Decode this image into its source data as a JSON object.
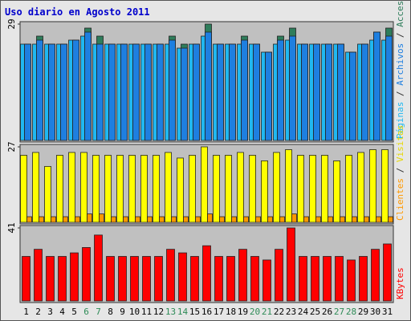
{
  "chart_data": [
    {
      "type": "bar",
      "title": "Uso diario en Agosto 2011",
      "ylim": [
        0,
        29
      ],
      "yticks": [
        29
      ],
      "legend_separator": " / ",
      "series": [
        {
          "name": "Páginas",
          "color": "#20b8f0",
          "values": [
            24,
            24,
            24,
            24,
            25,
            26,
            24,
            24,
            24,
            24,
            24,
            24,
            24,
            23,
            24,
            26,
            24,
            24,
            24,
            24,
            22,
            24,
            25,
            24,
            24,
            24,
            24,
            22,
            24,
            25,
            25
          ]
        },
        {
          "name": "Archivos",
          "color": "#1e7fe0",
          "values": [
            24,
            25,
            24,
            24,
            25,
            27,
            24,
            24,
            24,
            24,
            24,
            24,
            25,
            23,
            24,
            27,
            24,
            24,
            25,
            24,
            22,
            25,
            26,
            24,
            24,
            24,
            24,
            22,
            24,
            27,
            26
          ]
        },
        {
          "name": "Accesos",
          "color": "#2e7d5b",
          "values": [
            24,
            26,
            24,
            24,
            25,
            28,
            26,
            24,
            24,
            24,
            24,
            24,
            26,
            24,
            24,
            29,
            24,
            24,
            26,
            24,
            22,
            26,
            28,
            24,
            24,
            24,
            24,
            22,
            24,
            27,
            28
          ]
        }
      ]
    },
    {
      "type": "bar",
      "ylim": [
        0,
        27
      ],
      "yticks": [
        27
      ],
      "legend_separator": " / ",
      "series": [
        {
          "name": "Clientes",
          "color": "#ff9900",
          "values": [
            2,
            2,
            2,
            2,
            2,
            3,
            3,
            2,
            2,
            2,
            2,
            2,
            2,
            2,
            2,
            3,
            2,
            2,
            2,
            2,
            2,
            2,
            3,
            2,
            2,
            2,
            2,
            2,
            2,
            2,
            2
          ]
        },
        {
          "name": "Visitas",
          "color": "#ffff00",
          "values": [
            24,
            25,
            20,
            24,
            25,
            25,
            24,
            24,
            24,
            24,
            24,
            24,
            25,
            23,
            24,
            27,
            24,
            24,
            25,
            24,
            22,
            25,
            26,
            24,
            24,
            24,
            22,
            24,
            25,
            26,
            26
          ]
        }
      ]
    },
    {
      "type": "bar",
      "ylim": [
        0,
        41
      ],
      "yticks": [
        41
      ],
      "categories": [
        "1",
        "2",
        "3",
        "4",
        "5",
        "6",
        "7",
        "8",
        "9",
        "10",
        "11",
        "12",
        "13",
        "14",
        "15",
        "16",
        "17",
        "18",
        "19",
        "20",
        "21",
        "22",
        "23",
        "24",
        "25",
        "26",
        "27",
        "28",
        "29",
        "30",
        "31"
      ],
      "category_colors": [
        "#000",
        "#000",
        "#000",
        "#000",
        "#000",
        "#2e8b57",
        "#2e8b57",
        "#000",
        "#000",
        "#000",
        "#000",
        "#000",
        "#2e8b57",
        "#2e8b57",
        "#000",
        "#000",
        "#000",
        "#000",
        "#000",
        "#2e8b57",
        "#2e8b57",
        "#000",
        "#000",
        "#000",
        "#000",
        "#000",
        "#2e8b57",
        "#2e8b57",
        "#000",
        "#000",
        "#000"
      ],
      "series": [
        {
          "name": "KBytes",
          "color": "#ff0000",
          "values": [
            25,
            29,
            25,
            25,
            27,
            30,
            37,
            25,
            25,
            25,
            25,
            25,
            29,
            27,
            25,
            31,
            25,
            25,
            29,
            25,
            23,
            29,
            41,
            25,
            25,
            25,
            25,
            23,
            25,
            29,
            32
          ]
        }
      ]
    }
  ]
}
